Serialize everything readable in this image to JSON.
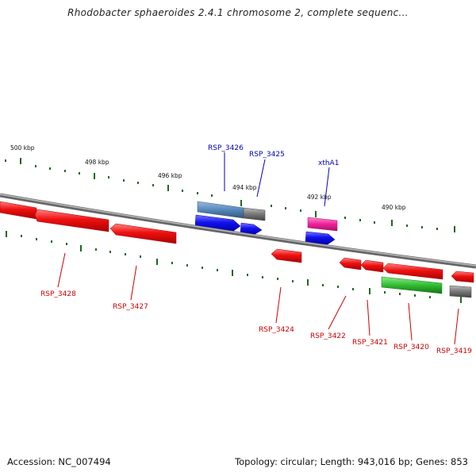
{
  "title": "Rhodobacter sphaeroides 2.4.1 chromosome 2, complete sequenc...",
  "footer": {
    "accession": "Accession: NC_007494",
    "topology": "Topology: circular; Length: 943,016 bp; Genes: 853"
  },
  "colors": {
    "red_gene": "#ee1111",
    "blue_gene": "#1111ee",
    "steel_gene": "#5588bb",
    "gray_gene": "#777777",
    "magenta_gene": "#ee2299",
    "green_gene": "#33bb33",
    "tick_green": "#226622",
    "label_red": "#cc0000",
    "label_blue": "#0000bb",
    "backbone": "#888888"
  },
  "kbp_markers": [
    "500 kbp",
    "498 kbp",
    "496 kbp",
    "494 kbp",
    "492 kbp",
    "490 kbp"
  ],
  "genes": [
    {
      "label": "RSP_3428",
      "color": "red"
    },
    {
      "label": "RSP_3427",
      "color": "red"
    },
    {
      "label": "RSP_3426",
      "color": "steel"
    },
    {
      "label": "RSP_3425",
      "color": "gray"
    },
    {
      "label": "xthA1",
      "color": "magenta"
    },
    {
      "label": "RSP_3424",
      "color": "red"
    },
    {
      "label": "RSP_3422",
      "color": "red"
    },
    {
      "label": "RSP_3421",
      "color": "red"
    },
    {
      "label": "RSP_3420",
      "color": "red"
    },
    {
      "label": "RSP_3419",
      "color": "gray"
    }
  ]
}
